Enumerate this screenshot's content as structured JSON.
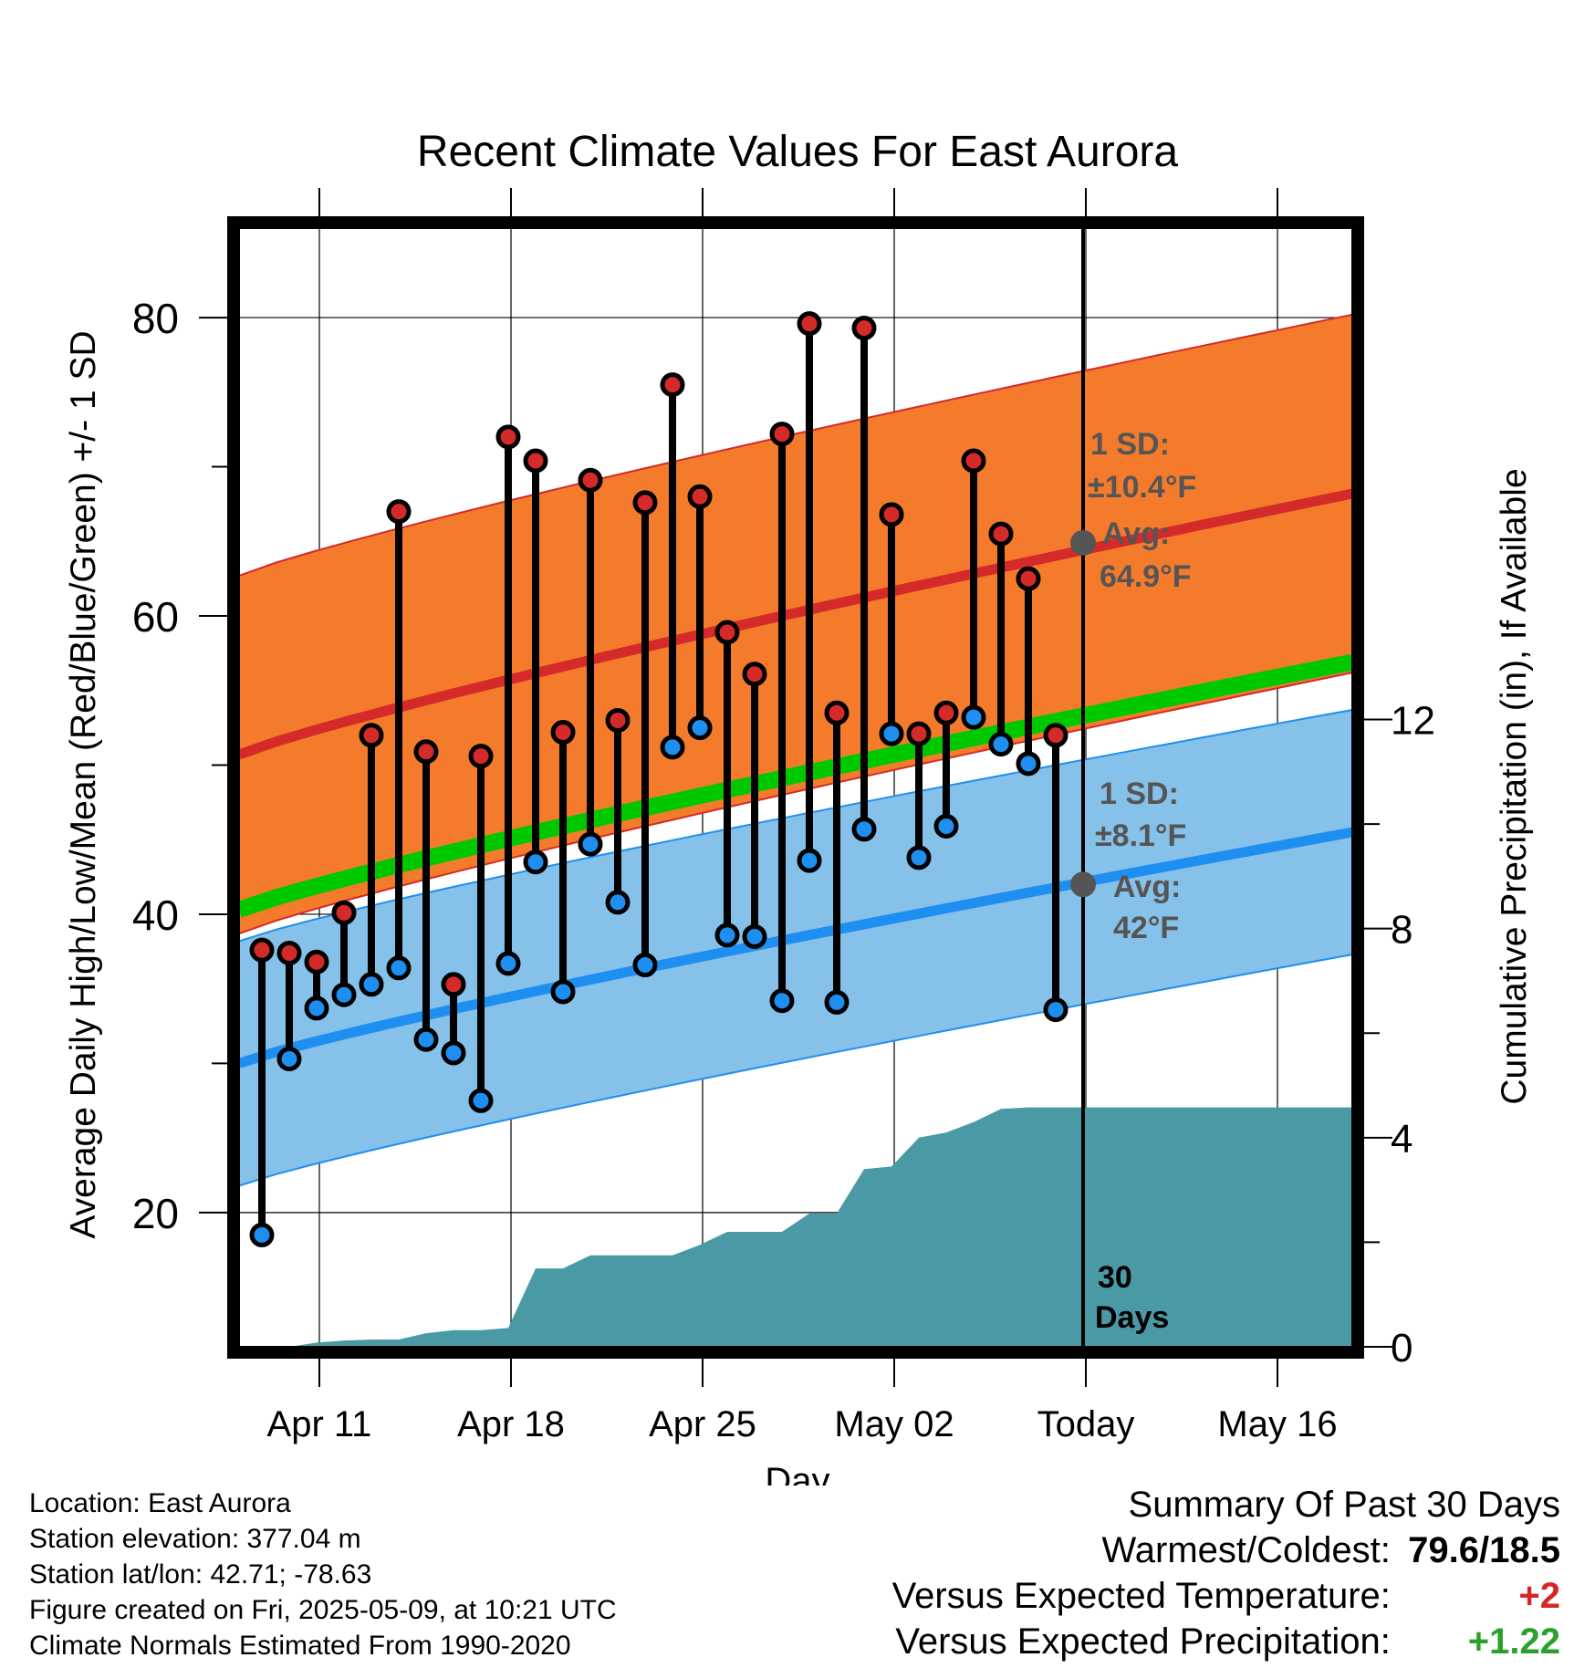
{
  "title": "Recent Climate Values For East Aurora",
  "chart_data": {
    "type": "line",
    "title": "Recent Climate Values For East Aurora",
    "xlabel": "Day",
    "ylabel": "Average Daily High/Low/Mean (Red/Blue/Green) +/- 1 SD",
    "y2label": "Cumulative Precipitation (in), If Available",
    "x_tick_labels": [
      "Apr 11",
      "Apr 18",
      "Apr 25",
      "May 02",
      "Today",
      "May 16"
    ],
    "y_ticks": [
      20,
      40,
      60,
      80
    ],
    "y_minor_ticks": [
      30,
      50,
      70
    ],
    "y2_ticks": [
      0,
      4,
      8,
      12
    ],
    "ylim": [
      11,
      86
    ],
    "y2lim": [
      0,
      21.4
    ],
    "grid": true,
    "days": [
      "Apr 09",
      "Apr 10",
      "Apr 11",
      "Apr 12",
      "Apr 13",
      "Apr 14",
      "Apr 15",
      "Apr 16",
      "Apr 17",
      "Apr 18",
      "Apr 19",
      "Apr 20",
      "Apr 21",
      "Apr 22",
      "Apr 23",
      "Apr 24",
      "Apr 25",
      "Apr 26",
      "Apr 27",
      "Apr 28",
      "Apr 29",
      "Apr 30",
      "May 01",
      "May 02",
      "May 03",
      "May 04",
      "May 05",
      "May 06",
      "May 07",
      "May 08"
    ],
    "series": [
      {
        "name": "High",
        "values": [
          37.6,
          37.4,
          36.8,
          40.1,
          52.0,
          67.0,
          50.9,
          35.3,
          50.6,
          72.0,
          70.4,
          52.2,
          69.1,
          53.0,
          67.6,
          75.5,
          68.0,
          58.9,
          56.1,
          72.2,
          79.6,
          53.5,
          79.3,
          66.8,
          52.1,
          53.5,
          70.4,
          65.5,
          62.5,
          52.0
        ]
      },
      {
        "name": "Low",
        "values": [
          18.5,
          30.3,
          33.7,
          34.6,
          35.3,
          36.4,
          31.6,
          30.7,
          27.5,
          36.7,
          43.5,
          34.8,
          44.7,
          40.8,
          36.6,
          51.2,
          52.5,
          38.6,
          38.5,
          34.2,
          43.6,
          34.1,
          45.7,
          52.1,
          43.8,
          45.9,
          53.2,
          51.4,
          50.1,
          33.6
        ]
      }
    ],
    "normals": {
      "high_mean_start": 50.7,
      "high_mean_end": 68.2,
      "high_sd_note": "1 SD:",
      "high_sd_value": "±10.4°F",
      "high_avg_label": "Avg:",
      "high_avg_value": "64.9°F",
      "high_avg_today": 64.9,
      "low_mean_start": 30.0,
      "low_mean_end": 45.5,
      "low_sd_note": "1 SD:",
      "low_sd_value": "±8.1°F",
      "low_avg_label": "Avg:",
      "low_avg_value": "42°F",
      "low_avg_today": 42.0,
      "mean_start": 40.3,
      "mean_end": 56.9
    },
    "precip_cumulative": [
      0,
      0,
      0.08,
      0.12,
      0.14,
      0.14,
      0.26,
      0.32,
      0.32,
      0.36,
      1.5,
      1.5,
      1.75,
      1.75,
      1.75,
      1.75,
      1.95,
      2.2,
      2.2,
      2.2,
      2.55,
      2.55,
      3.4,
      3.45,
      4.0,
      4.1,
      4.3,
      4.55,
      4.58,
      4.58,
      4.58
    ],
    "precip_final": 4.58,
    "today_label_line1": "30",
    "today_label_line2": "Days"
  },
  "info": {
    "location": "Location: East Aurora",
    "elevation": "Station elevation: 377.04 m",
    "latlon": "Station lat/lon: 42.71; -78.63",
    "created": "Figure created on Fri, 2025-05-09, at 10:21 UTC",
    "normals": "Climate Normals Estimated From 1990-2020"
  },
  "summary": {
    "heading": "Summary Of Past 30 Days",
    "warm_cold_label": "Warmest/Coldest:",
    "warm_cold_value": "79.6/18.5",
    "temp_label": "Versus Expected Temperature:",
    "temp_value": "+2",
    "precip_label": "Versus Expected Precipitation:",
    "precip_value": "+1.22"
  },
  "colors": {
    "high_band": "#f47b2c",
    "high_line": "#d42a2a",
    "low_band": "#85c1e9",
    "low_line": "#1e8ff0",
    "mean_line": "#00c800",
    "precip": "#4a9aa5",
    "high_dot": "#d42a2a",
    "low_dot": "#1e8ff0",
    "annotation": "#555555"
  }
}
